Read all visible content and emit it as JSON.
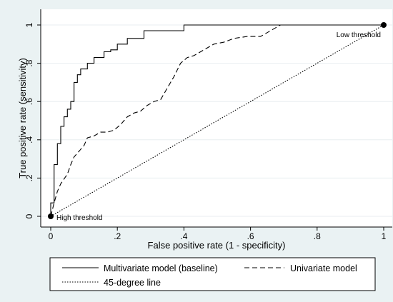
{
  "chart_data": {
    "type": "line",
    "xlabel": "False positive rate (1 - specificity)",
    "ylabel": "True positive rate (sensitivity)",
    "xlim": [
      0,
      1
    ],
    "ylim": [
      0,
      1
    ],
    "x_ticks": [
      0,
      0.2,
      0.4,
      0.6,
      0.8,
      1
    ],
    "x_tick_labels": [
      "0",
      ".2",
      ".4",
      ".6",
      ".8",
      "1"
    ],
    "y_ticks": [
      0,
      0.2,
      0.4,
      0.6,
      0.8,
      1
    ],
    "y_tick_labels": [
      "0",
      ".2",
      ".4",
      ".6",
      ".8",
      "1"
    ],
    "grid": "horizontal",
    "legend_position": "bottom",
    "series": [
      {
        "name": "Multivariate model (baseline)",
        "style": "solid",
        "color": "#000000",
        "x": [
          0,
          0,
          0.01,
          0.01,
          0.02,
          0.02,
          0.03,
          0.03,
          0.04,
          0.04,
          0.05,
          0.05,
          0.06,
          0.06,
          0.07,
          0.07,
          0.08,
          0.08,
          0.09,
          0.09,
          0.11,
          0.11,
          0.13,
          0.13,
          0.16,
          0.16,
          0.18,
          0.18,
          0.2,
          0.2,
          0.23,
          0.23,
          0.28,
          0.28,
          0.4,
          0.4,
          1
        ],
        "y": [
          0,
          0.07,
          0.07,
          0.27,
          0.27,
          0.38,
          0.38,
          0.47,
          0.47,
          0.52,
          0.52,
          0.56,
          0.56,
          0.6,
          0.6,
          0.7,
          0.7,
          0.74,
          0.74,
          0.77,
          0.77,
          0.8,
          0.8,
          0.83,
          0.83,
          0.86,
          0.86,
          0.87,
          0.87,
          0.9,
          0.9,
          0.93,
          0.93,
          0.97,
          0.97,
          1,
          1
        ]
      },
      {
        "name": "Univariate model",
        "style": "dashed",
        "color": "#000000",
        "x": [
          0,
          0.01,
          0.02,
          0.03,
          0.05,
          0.06,
          0.07,
          0.09,
          0.1,
          0.11,
          0.13,
          0.15,
          0.17,
          0.19,
          0.21,
          0.23,
          0.25,
          0.27,
          0.29,
          0.31,
          0.33,
          0.35,
          0.37,
          0.39,
          0.41,
          0.43,
          0.46,
          0.49,
          0.52,
          0.55,
          0.59,
          0.63,
          0.66,
          0.69,
          1
        ],
        "y": [
          0,
          0.07,
          0.13,
          0.17,
          0.22,
          0.27,
          0.31,
          0.35,
          0.37,
          0.41,
          0.42,
          0.44,
          0.44,
          0.45,
          0.48,
          0.52,
          0.54,
          0.55,
          0.58,
          0.6,
          0.61,
          0.67,
          0.73,
          0.8,
          0.83,
          0.84,
          0.87,
          0.9,
          0.91,
          0.93,
          0.94,
          0.94,
          0.97,
          1,
          1
        ]
      },
      {
        "name": "45-degree line",
        "style": "dotted",
        "color": "#000000",
        "x": [
          0,
          1
        ],
        "y": [
          0,
          1
        ]
      }
    ],
    "points": [
      {
        "x": 0,
        "y": 0,
        "label": "High threshold",
        "label_side": "right"
      },
      {
        "x": 1,
        "y": 1,
        "label": "Low threshold",
        "label_side": "left"
      }
    ]
  }
}
